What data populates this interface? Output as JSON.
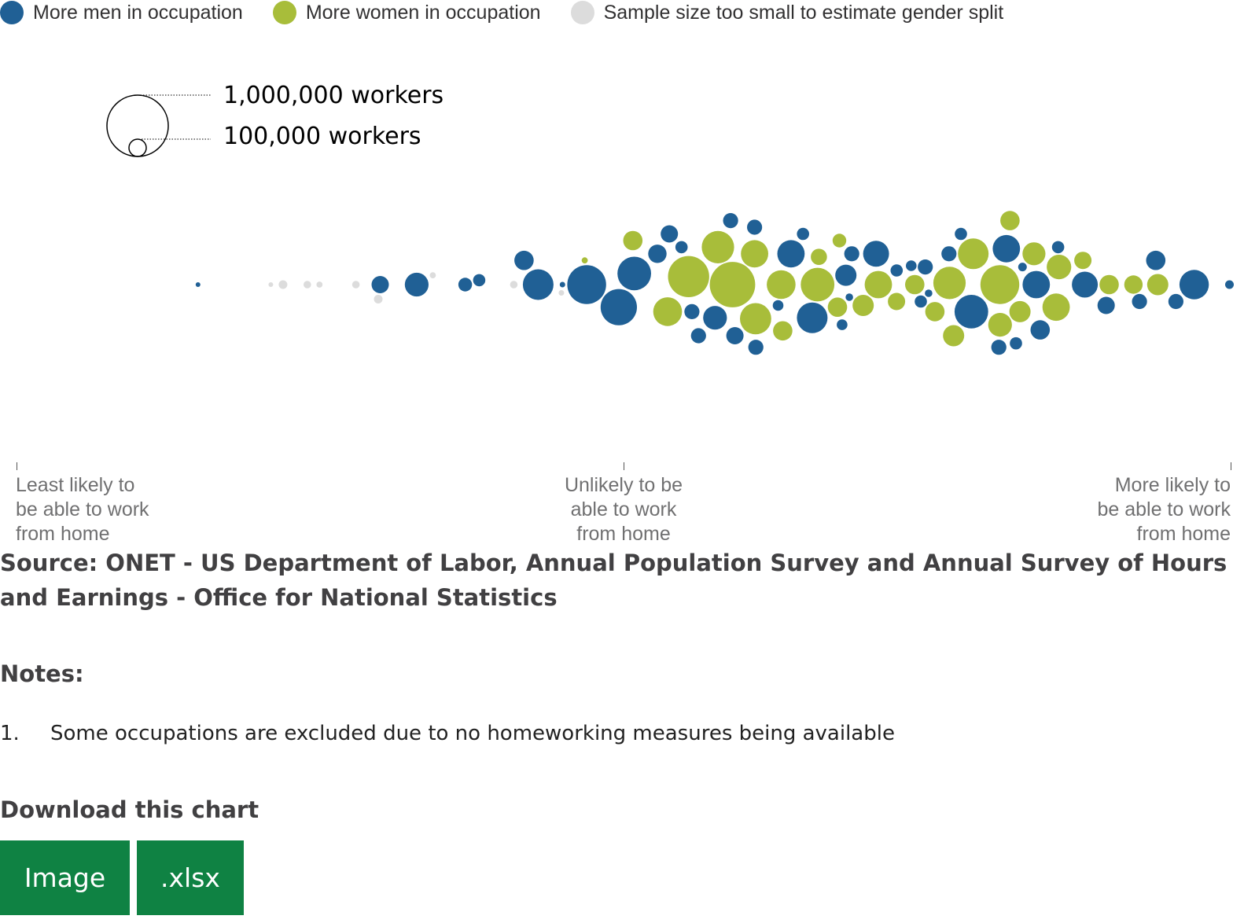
{
  "legend": [
    {
      "label": "More men in occupation",
      "color": "#206095"
    },
    {
      "label": "More women in occupation",
      "color": "#a8bd3a"
    },
    {
      "label": "Sample size too small to estimate gender split",
      "color": "#dcdcdc"
    }
  ],
  "size_key": {
    "large_label": "1,000,000 workers",
    "small_label": "100,000 workers"
  },
  "axis": {
    "left_label": [
      "Least likely to",
      "be able to work",
      "from home"
    ],
    "middle_label": [
      "Unlikely to be",
      "able to work",
      "from home"
    ],
    "right_label": [
      "More likely to",
      "be able to work",
      "from home"
    ]
  },
  "source": "Source: ONET - US Department of Labor, Annual Population Survey and Annual Survey of Hours and Earnings - Office for National Statistics",
  "notes_title": "Notes:",
  "notes": [
    {
      "num": "1.",
      "text": "Some occupations are excluded due to no homeworking measures being available"
    }
  ],
  "download_title": "Download this chart",
  "buttons": {
    "image": "Image",
    "xlsx": ".xlsx"
  },
  "chart_data": {
    "type": "scatter",
    "xlabel": "",
    "ylabel": "",
    "series": [
      {
        "name": "More men in occupation",
        "color": "#206095",
        "x": [
          0.15,
          0.3,
          0.33,
          0.37,
          0.38,
          0.42,
          0.43,
          0.45,
          0.47,
          0.49,
          0.51,
          0.53,
          0.54,
          0.55,
          0.56,
          0.57,
          0.58,
          0.59,
          0.6,
          0.61,
          0.62,
          0.63,
          0.64,
          0.65,
          0.66,
          0.67,
          0.68,
          0.69,
          0.7,
          0.71,
          0.72,
          0.73,
          0.74,
          0.75,
          0.76,
          0.77,
          0.78,
          0.79,
          0.8,
          0.81,
          0.82,
          0.83,
          0.84,
          0.85,
          0.86,
          0.88,
          0.9,
          0.92,
          0.94,
          0.95,
          0.97,
          1.0
        ],
        "workers": [
          5000,
          80000,
          150000,
          50000,
          40000,
          100000,
          250000,
          8000,
          400000,
          350000,
          300000,
          90000,
          80000,
          40000,
          60000,
          60000,
          150000,
          60000,
          80000,
          60000,
          60000,
          30000,
          200000,
          40000,
          250000,
          30000,
          120000,
          60000,
          15000,
          180000,
          40000,
          30000,
          40000,
          60000,
          15000,
          60000,
          40000,
          300000,
          200000,
          40000,
          60000,
          20000,
          200000,
          100000,
          40000,
          180000,
          80000,
          60000,
          100000,
          60000,
          230000,
          20000
        ]
      },
      {
        "name": "More women in occupation",
        "color": "#a8bd3a",
        "x": [
          0.47,
          0.51,
          0.54,
          0.56,
          0.58,
          0.59,
          0.6,
          0.61,
          0.62,
          0.63,
          0.65,
          0.66,
          0.67,
          0.68,
          0.7,
          0.71,
          0.72,
          0.74,
          0.76,
          0.77,
          0.78,
          0.79,
          0.8,
          0.81,
          0.82,
          0.83,
          0.84,
          0.85,
          0.86,
          0.88,
          0.9,
          0.92,
          0.94
        ],
        "workers": [
          10000,
          100000,
          220000,
          450000,
          280000,
          550000,
          260000,
          200000,
          100000,
          220000,
          70000,
          300000,
          100000,
          50000,
          120000,
          200000,
          80000,
          100000,
          100000,
          280000,
          120000,
          250000,
          150000,
          400000,
          100000,
          120000,
          140000,
          200000,
          160000,
          80000,
          100000,
          90000,
          120000
        ]
      },
      {
        "name": "Sample size too small to estimate gender split",
        "color": "#dcdcdc",
        "x": [
          0.21,
          0.22,
          0.24,
          0.25,
          0.28,
          0.3,
          0.34,
          0.41,
          0.45
        ],
        "workers": [
          5000,
          20000,
          15000,
          10000,
          15000,
          20000,
          10000,
          15000,
          8000
        ]
      }
    ]
  }
}
